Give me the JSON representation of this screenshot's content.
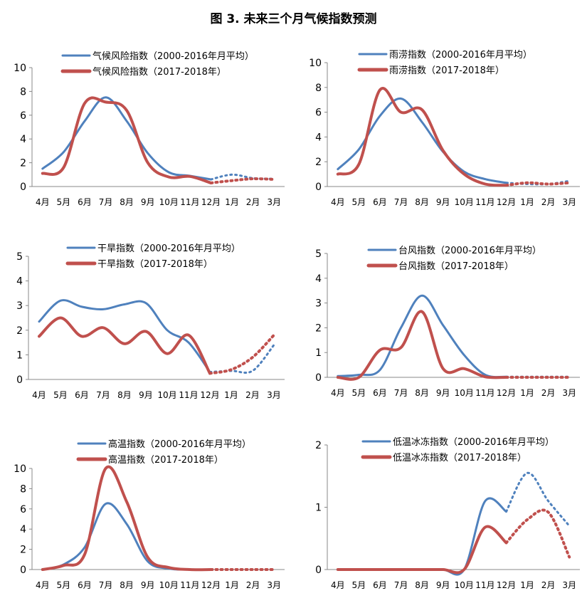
{
  "figure_title": "图 3. 未来三个月气候指数预测",
  "colors": {
    "historical": "#4f81bd",
    "recent": "#c0504d"
  },
  "chart_data": [
    {
      "type": "line",
      "x": [
        "4月",
        "5月",
        "6月",
        "7月",
        "8月",
        "9月",
        "10月",
        "11月",
        "12月",
        "1月",
        "2月",
        "3月"
      ],
      "ylim": [
        0,
        10
      ],
      "yticks": [
        0,
        2,
        4,
        6,
        8,
        10
      ],
      "dotted_from_index": 8,
      "series": [
        {
          "name": "气候风险指数（2000-2016年月平均）",
          "values": [
            1.5,
            2.9,
            5.5,
            7.5,
            5.5,
            2.8,
            1.2,
            0.9,
            0.6,
            1.0,
            0.7,
            0.65
          ]
        },
        {
          "name": "气候风险指数（2017-2018年）",
          "values": [
            1.1,
            1.6,
            7.0,
            7.1,
            6.4,
            2.0,
            0.8,
            0.85,
            0.3,
            0.5,
            0.65,
            0.6
          ]
        }
      ]
    },
    {
      "type": "line",
      "x": [
        "4月",
        "5月",
        "6月",
        "7月",
        "8月",
        "9月",
        "10月",
        "11月",
        "12月",
        "1月",
        "2月",
        "3月"
      ],
      "ylim": [
        0,
        10
      ],
      "yticks": [
        0,
        2,
        4,
        6,
        8,
        10
      ],
      "dotted_from_index": 8,
      "series": [
        {
          "name": "雨涝指数（2000-2016年月平均）",
          "values": [
            1.4,
            3.0,
            5.7,
            7.1,
            5.2,
            2.8,
            1.2,
            0.6,
            0.3,
            0.2,
            0.2,
            0.45
          ]
        },
        {
          "name": "雨涝指数（2017-2018年）",
          "values": [
            1.0,
            1.8,
            7.8,
            6.0,
            6.2,
            2.9,
            1.0,
            0.2,
            0.1,
            0.3,
            0.2,
            0.3
          ]
        }
      ]
    },
    {
      "type": "line",
      "x": [
        "4月",
        "5月",
        "6月",
        "7月",
        "8月",
        "9月",
        "10月",
        "11月",
        "12月",
        "1月",
        "2月",
        "3月"
      ],
      "ylim": [
        0,
        5
      ],
      "yticks": [
        0,
        1,
        2,
        3,
        4,
        5
      ],
      "dotted_from_index": 8,
      "series": [
        {
          "name": "干旱指数（2000-2016年月平均）",
          "values": [
            2.35,
            3.2,
            2.95,
            2.85,
            3.05,
            3.1,
            2.0,
            1.5,
            0.3,
            0.35,
            0.35,
            1.4
          ]
        },
        {
          "name": "干旱指数（2017-2018年）",
          "values": [
            1.75,
            2.5,
            1.75,
            2.1,
            1.45,
            1.95,
            1.05,
            1.8,
            0.25,
            0.4,
            0.9,
            1.8
          ]
        }
      ]
    },
    {
      "type": "line",
      "x": [
        "4月",
        "5月",
        "6月",
        "7月",
        "8月",
        "9月",
        "10月",
        "11月",
        "12月",
        "1月",
        "2月",
        "3月"
      ],
      "ylim": [
        0,
        5
      ],
      "yticks": [
        0,
        1,
        2,
        3,
        4,
        5
      ],
      "dotted_from_index": 8,
      "series": [
        {
          "name": "台风指数（2000-2016年月平均）",
          "values": [
            0.05,
            0.1,
            0.3,
            2.0,
            3.3,
            2.1,
            0.9,
            0.1,
            0.02,
            0.02,
            0.02,
            0.02
          ]
        },
        {
          "name": "台风指数（2017-2018年）",
          "values": [
            0.0,
            0.0,
            1.1,
            1.2,
            2.65,
            0.35,
            0.35,
            0.02,
            0.0,
            0.0,
            0.0,
            0.0
          ]
        }
      ]
    },
    {
      "type": "line",
      "x": [
        "4月",
        "5月",
        "6月",
        "7月",
        "8月",
        "9月",
        "10月",
        "11月",
        "12月",
        "1月",
        "2月",
        "3月"
      ],
      "ylim": [
        0,
        10
      ],
      "yticks": [
        0,
        2,
        4,
        6,
        8,
        10
      ],
      "dotted_from_index": 8,
      "series": [
        {
          "name": "高温指数（2000-2016年月平均）",
          "values": [
            0.0,
            0.5,
            2.2,
            6.5,
            4.5,
            0.8,
            0.1,
            0.0,
            0.0,
            0.0,
            0.0,
            0.0
          ]
        },
        {
          "name": "高温指数（2017-2018年）",
          "values": [
            0.0,
            0.4,
            1.5,
            10.0,
            6.7,
            1.2,
            0.2,
            0.0,
            0.0,
            0.0,
            0.0,
            0.0
          ]
        }
      ]
    },
    {
      "type": "line",
      "x": [
        "4月",
        "5月",
        "6月",
        "7月",
        "8月",
        "9月",
        "10月",
        "11月",
        "12月",
        "1月",
        "2月",
        "3月"
      ],
      "ylim": [
        0,
        2
      ],
      "yticks": [
        0,
        1,
        2
      ],
      "dotted_from_index": 8,
      "series": [
        {
          "name": "低温冰冻指数（2000-2016年月平均）",
          "values": [
            0.0,
            0.0,
            0.0,
            0.0,
            0.0,
            0.0,
            0.0,
            1.1,
            0.93,
            1.55,
            1.1,
            0.7
          ]
        },
        {
          "name": "低温冰冻指数（2017-2018年）",
          "values": [
            0.0,
            0.0,
            0.0,
            0.0,
            0.0,
            0.0,
            0.0,
            0.68,
            0.43,
            0.8,
            0.92,
            0.2
          ]
        }
      ]
    }
  ]
}
